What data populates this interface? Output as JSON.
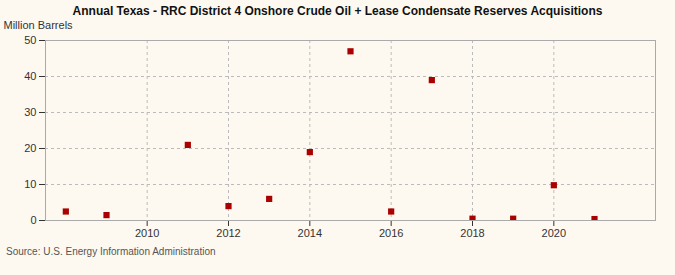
{
  "chart_data": {
    "type": "scatter",
    "title": "Annual Texas - RRC District 4 Onshore Crude Oil + Lease Condensate Reserves Acquisitions",
    "ylabel": "Million Barrels",
    "annotations": [
      "Source: U.S. Energy Information Administration"
    ],
    "x": [
      2008,
      2009,
      2011,
      2012,
      2013,
      2014,
      2015,
      2016,
      2017,
      2018,
      2019,
      2020,
      2021
    ],
    "values": [
      2.5,
      1.5,
      21.0,
      4.0,
      6.0,
      19.0,
      47.0,
      2.5,
      39.0,
      0.5,
      0.5,
      9.8,
      0.4
    ],
    "xlim": [
      2007.5,
      2022.5
    ],
    "xticks": [
      2010,
      2012,
      2014,
      2016,
      2018,
      2020
    ],
    "ylim": [
      0,
      50
    ],
    "yticks": [
      0,
      10,
      20,
      30,
      40,
      50
    ],
    "color": "#aa0000",
    "marker": "square",
    "grid": true
  }
}
